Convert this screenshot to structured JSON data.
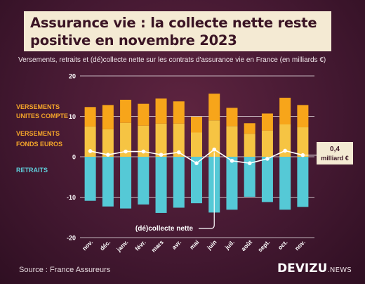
{
  "title_line1": "Assurance vie : la collecte nette reste",
  "title_line2": "positive en novembre 2023",
  "subtitle": "Versements, retraits et (dé)collecte nette sur les contrats d'assurance vie en France (en milliards €)",
  "source": "Source : France Assureurs",
  "logo_main": "DEVIZU",
  "logo_suffix": ".NEWS",
  "colors": {
    "uc": "#f7a51a",
    "euros": "#f6c443",
    "retraits": "#55c9d6",
    "net": "#ffffff",
    "text_orange": "#f4a52a",
    "text_cyan": "#5fd0dc"
  },
  "chart_data": {
    "type": "bar",
    "categories": [
      "nov.",
      "déc.",
      "janv.",
      "févr.",
      "mars",
      "avr.",
      "mai",
      "juin",
      "juil.",
      "août",
      "sept.",
      "oct.",
      "nov."
    ],
    "ylim": [
      -20,
      20
    ],
    "yticks": [
      20,
      10,
      0,
      -10,
      -20
    ],
    "series": [
      {
        "name": "VERSEMENTS FONDS EUROS",
        "values": [
          7.5,
          6.8,
          8.4,
          7.7,
          8.2,
          8.2,
          6.0,
          9.0,
          7.6,
          5.7,
          6.5,
          8.0,
          7.3
        ]
      },
      {
        "name": "VERSEMENTS UNITES COMPTE",
        "values": [
          4.8,
          6.0,
          5.7,
          5.4,
          6.2,
          5.5,
          3.9,
          6.6,
          4.5,
          2.6,
          4.2,
          6.6,
          5.5
        ]
      },
      {
        "name": "RETRAITS",
        "values": [
          -10.9,
          -12.3,
          -12.8,
          -11.8,
          -13.9,
          -12.6,
          -11.5,
          -13.8,
          -13.1,
          -9.9,
          -11.2,
          -13.1,
          -12.4
        ]
      },
      {
        "name": "(dé)collecte nette",
        "values": [
          1.4,
          0.5,
          1.3,
          1.3,
          0.5,
          1.1,
          -1.6,
          1.8,
          -1.0,
          -1.6,
          -0.5,
          1.5,
          0.4
        ]
      }
    ],
    "legend": {
      "uc_line1": "VERSEMENTS",
      "uc_line2": "UNITES COMPTE",
      "euros_line1": "VERSEMENTS",
      "euros_line2": "FONDS EUROS",
      "retraits": "RETRAITS",
      "net": "(dé)collecte nette"
    },
    "annotation_value": "0,4",
    "annotation_unit": "milliard €"
  }
}
